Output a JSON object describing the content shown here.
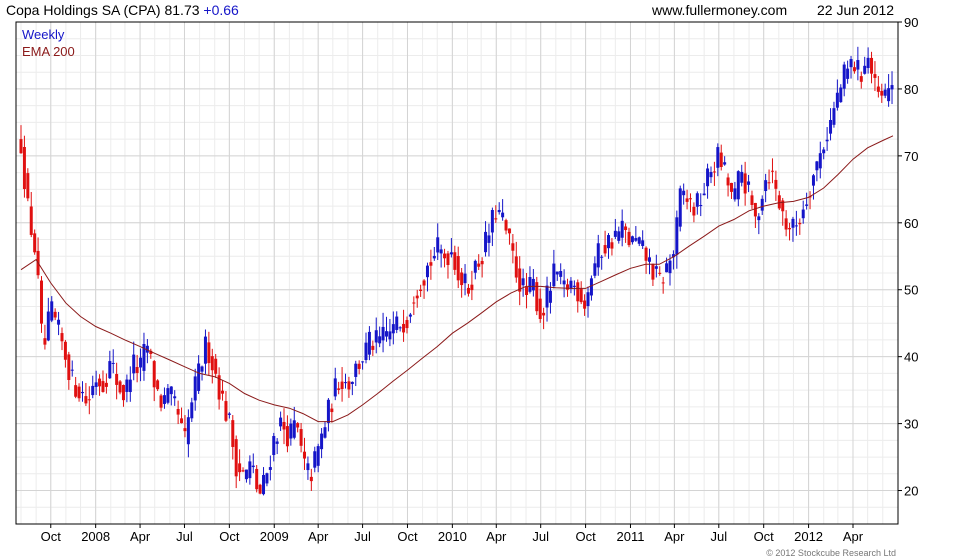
{
  "header": {
    "title": "Copa Holdings SA (CPA)",
    "last_price": "81.73",
    "change": "+0.66",
    "source": "www.fullermoney.com",
    "date": "22 Jun 2012"
  },
  "legend": [
    {
      "label": "Weekly",
      "color": "#1515c8"
    },
    {
      "label": "EMA 200",
      "color": "#8b1a1a"
    }
  ],
  "copyright": "© 2012 Stockcube Research Ltd",
  "colors": {
    "up": "#1515c8",
    "down": "#e01010",
    "ema": "#8b1a1a",
    "grid": "#d4d4d4",
    "axis": "#000000"
  },
  "chart_data": {
    "type": "candlestick",
    "frequency": "weekly",
    "date_range": [
      "2007-08",
      "2012-06-22"
    ],
    "y_axis": {
      "side": "right",
      "ticks": [
        20,
        30,
        40,
        50,
        60,
        70,
        80,
        90
      ],
      "ylim": [
        15,
        90
      ]
    },
    "x_axis": {
      "ticks": [
        {
          "label": "Oct",
          "date": "2007-10"
        },
        {
          "label": "2008",
          "date": "2008-01"
        },
        {
          "label": "Apr",
          "date": "2008-04"
        },
        {
          "label": "Jul",
          "date": "2008-07"
        },
        {
          "label": "Oct",
          "date": "2008-10"
        },
        {
          "label": "2009",
          "date": "2009-01"
        },
        {
          "label": "Apr",
          "date": "2009-04"
        },
        {
          "label": "Jul",
          "date": "2009-07"
        },
        {
          "label": "Oct",
          "date": "2009-10"
        },
        {
          "label": "2010",
          "date": "2010-01"
        },
        {
          "label": "Apr",
          "date": "2010-04"
        },
        {
          "label": "Jul",
          "date": "2010-07"
        },
        {
          "label": "Oct",
          "date": "2010-10"
        },
        {
          "label": "2011",
          "date": "2011-01"
        },
        {
          "label": "Apr",
          "date": "2011-04"
        },
        {
          "label": "Jul",
          "date": "2011-07"
        },
        {
          "label": "Oct",
          "date": "2011-10"
        },
        {
          "label": "2012",
          "date": "2012-01"
        },
        {
          "label": "Apr",
          "date": "2012-04"
        }
      ]
    },
    "price_path": [
      [
        "2007-08-01",
        72
      ],
      [
        "2007-08-15",
        62
      ],
      [
        "2007-09-01",
        55
      ],
      [
        "2007-09-15",
        40
      ],
      [
        "2007-10-01",
        47
      ],
      [
        "2007-10-15",
        44
      ],
      [
        "2007-11-01",
        40
      ],
      [
        "2007-11-15",
        36
      ],
      [
        "2007-12-01",
        35
      ],
      [
        "2007-12-15",
        33
      ],
      [
        "2008-01-01",
        37
      ],
      [
        "2008-01-15",
        36
      ],
      [
        "2008-02-01",
        39
      ],
      [
        "2008-02-15",
        36
      ],
      [
        "2008-03-01",
        34
      ],
      [
        "2008-03-15",
        39
      ],
      [
        "2008-04-01",
        38
      ],
      [
        "2008-04-15",
        42
      ],
      [
        "2008-05-01",
        36
      ],
      [
        "2008-05-15",
        33
      ],
      [
        "2008-06-01",
        34
      ],
      [
        "2008-06-15",
        32
      ],
      [
        "2008-07-01",
        27
      ],
      [
        "2008-07-15",
        33
      ],
      [
        "2008-08-01",
        38
      ],
      [
        "2008-08-15",
        42
      ],
      [
        "2008-09-01",
        38
      ],
      [
        "2008-09-15",
        34
      ],
      [
        "2008-10-01",
        30
      ],
      [
        "2008-10-15",
        24
      ],
      [
        "2008-11-01",
        22
      ],
      [
        "2008-11-15",
        24
      ],
      [
        "2008-12-01",
        19
      ],
      [
        "2008-12-15",
        22
      ],
      [
        "2009-01-01",
        28
      ],
      [
        "2009-01-15",
        30
      ],
      [
        "2009-02-01",
        28
      ],
      [
        "2009-02-15",
        30
      ],
      [
        "2009-03-01",
        24
      ],
      [
        "2009-03-15",
        22
      ],
      [
        "2009-04-01",
        26
      ],
      [
        "2009-04-15",
        30
      ],
      [
        "2009-05-01",
        34
      ],
      [
        "2009-05-15",
        37
      ],
      [
        "2009-06-01",
        36
      ],
      [
        "2009-06-15",
        38
      ],
      [
        "2009-07-01",
        40
      ],
      [
        "2009-07-15",
        42
      ],
      [
        "2009-08-01",
        42
      ],
      [
        "2009-08-15",
        43
      ],
      [
        "2009-09-01",
        44
      ],
      [
        "2009-09-15",
        45
      ],
      [
        "2009-10-01",
        46
      ],
      [
        "2009-10-15",
        50
      ],
      [
        "2009-11-01",
        52
      ],
      [
        "2009-11-15",
        54
      ],
      [
        "2009-12-01",
        56
      ],
      [
        "2009-12-15",
        55
      ],
      [
        "2010-01-01",
        56
      ],
      [
        "2010-01-15",
        52
      ],
      [
        "2010-02-01",
        50
      ],
      [
        "2010-02-15",
        53
      ],
      [
        "2010-03-01",
        55
      ],
      [
        "2010-03-15",
        58
      ],
      [
        "2010-04-01",
        62
      ],
      [
        "2010-04-15",
        60
      ],
      [
        "2010-05-01",
        56
      ],
      [
        "2010-05-15",
        52
      ],
      [
        "2010-06-01",
        49
      ],
      [
        "2010-06-15",
        51
      ],
      [
        "2010-07-01",
        46
      ],
      [
        "2010-07-15",
        49
      ],
      [
        "2010-08-01",
        53
      ],
      [
        "2010-08-15",
        50
      ],
      [
        "2010-09-01",
        51
      ],
      [
        "2010-09-15",
        50
      ],
      [
        "2010-10-01",
        48
      ],
      [
        "2010-10-15",
        53
      ],
      [
        "2010-11-01",
        56
      ],
      [
        "2010-11-15",
        57
      ],
      [
        "2010-12-01",
        58
      ],
      [
        "2010-12-15",
        59
      ],
      [
        "2011-01-01",
        57
      ],
      [
        "2011-01-15",
        57
      ],
      [
        "2011-02-01",
        55
      ],
      [
        "2011-02-15",
        53
      ],
      [
        "2011-03-01",
        51
      ],
      [
        "2011-03-15",
        53
      ],
      [
        "2011-04-01",
        56
      ],
      [
        "2011-04-15",
        65
      ],
      [
        "2011-05-01",
        63
      ],
      [
        "2011-05-15",
        62
      ],
      [
        "2011-06-01",
        65
      ],
      [
        "2011-06-15",
        68
      ],
      [
        "2011-07-01",
        70
      ],
      [
        "2011-07-15",
        67
      ],
      [
        "2011-08-01",
        63
      ],
      [
        "2011-08-15",
        68
      ],
      [
        "2011-09-01",
        64
      ],
      [
        "2011-09-15",
        60
      ],
      [
        "2011-10-01",
        66
      ],
      [
        "2011-10-15",
        68
      ],
      [
        "2011-11-01",
        63
      ],
      [
        "2011-11-15",
        60
      ],
      [
        "2011-12-01",
        59
      ],
      [
        "2011-12-15",
        61
      ],
      [
        "2012-01-01",
        65
      ],
      [
        "2012-01-15",
        68
      ],
      [
        "2012-02-01",
        72
      ],
      [
        "2012-02-15",
        75
      ],
      [
        "2012-03-01",
        79
      ],
      [
        "2012-03-15",
        82
      ],
      [
        "2012-04-01",
        84
      ],
      [
        "2012-04-15",
        82
      ],
      [
        "2012-05-01",
        85
      ],
      [
        "2012-05-15",
        80
      ],
      [
        "2012-06-01",
        78
      ],
      [
        "2012-06-22",
        81.73
      ]
    ],
    "ema_200_path": [
      [
        "2007-08-01",
        53
      ],
      [
        "2007-09-01",
        54.5
      ],
      [
        "2007-10-01",
        51
      ],
      [
        "2007-11-01",
        48
      ],
      [
        "2007-12-01",
        46
      ],
      [
        "2008-01-01",
        44.5
      ],
      [
        "2008-02-01",
        43.5
      ],
      [
        "2008-03-01",
        42.5
      ],
      [
        "2008-04-01",
        41.5
      ],
      [
        "2008-05-01",
        40.5
      ],
      [
        "2008-06-01",
        39.5
      ],
      [
        "2008-07-01",
        38.5
      ],
      [
        "2008-08-01",
        37.5
      ],
      [
        "2008-09-01",
        37
      ],
      [
        "2008-10-01",
        36
      ],
      [
        "2008-11-01",
        34.5
      ],
      [
        "2008-12-01",
        33.5
      ],
      [
        "2009-01-01",
        32.8
      ],
      [
        "2009-02-01",
        32.3
      ],
      [
        "2009-03-01",
        31.5
      ],
      [
        "2009-04-01",
        30.3
      ],
      [
        "2009-05-01",
        30.3
      ],
      [
        "2009-06-01",
        31.3
      ],
      [
        "2009-07-01",
        32.8
      ],
      [
        "2009-08-01",
        34.5
      ],
      [
        "2009-09-01",
        36.3
      ],
      [
        "2009-10-01",
        38
      ],
      [
        "2009-11-01",
        39.8
      ],
      [
        "2009-12-01",
        41.5
      ],
      [
        "2010-01-01",
        43.5
      ],
      [
        "2010-02-01",
        45
      ],
      [
        "2010-03-01",
        46.5
      ],
      [
        "2010-04-01",
        48.2
      ],
      [
        "2010-05-01",
        49.5
      ],
      [
        "2010-06-01",
        50.5
      ],
      [
        "2010-07-01",
        50.5
      ],
      [
        "2010-08-01",
        50.3
      ],
      [
        "2010-09-01",
        50.2
      ],
      [
        "2010-10-01",
        50.2
      ],
      [
        "2010-11-01",
        51.2
      ],
      [
        "2010-12-01",
        52.2
      ],
      [
        "2011-01-01",
        53.2
      ],
      [
        "2011-02-01",
        53.8
      ],
      [
        "2011-03-01",
        53.8
      ],
      [
        "2011-04-01",
        55
      ],
      [
        "2011-05-01",
        56.5
      ],
      [
        "2011-06-01",
        58
      ],
      [
        "2011-07-01",
        59.5
      ],
      [
        "2011-08-01",
        60.5
      ],
      [
        "2011-09-01",
        61.8
      ],
      [
        "2011-10-01",
        62.5
      ],
      [
        "2011-11-01",
        63
      ],
      [
        "2011-12-01",
        63.2
      ],
      [
        "2012-01-01",
        63.8
      ],
      [
        "2012-02-01",
        65.2
      ],
      [
        "2012-03-01",
        67.2
      ],
      [
        "2012-04-01",
        69.5
      ],
      [
        "2012-05-01",
        71.2
      ],
      [
        "2012-06-01",
        72.3
      ],
      [
        "2012-06-22",
        73
      ]
    ]
  }
}
